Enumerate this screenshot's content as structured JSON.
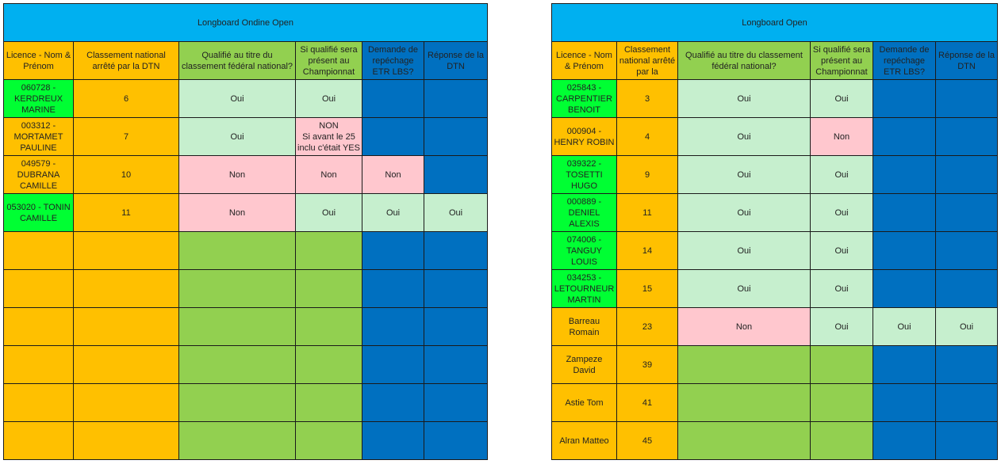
{
  "tables": [
    {
      "title": "Longboard Ondine Open",
      "headers": [
        "Licence - Nom & Prénom",
        "Classement national arrêté par la DTN",
        "Qualifié au titre du classement fédéral national?",
        "Si qualifié sera présent au Championnat",
        "Demande de repéchage ETR LBS?",
        "Réponse de la DTN"
      ],
      "rows": [
        [
          "060728 - KERDREUX MARINE",
          "6",
          "Oui",
          "Oui",
          "",
          ""
        ],
        [
          "003312 - MORTAMET PAULINE",
          "7",
          "Oui",
          "NON\nSi avant le 25 inclu c'était YES",
          "",
          ""
        ],
        [
          "049579 - DUBRANA CAMILLE",
          "10",
          "Non",
          "Non",
          "Non",
          ""
        ],
        [
          "053020 - TONIN CAMILLE",
          "11",
          "Non",
          "Oui",
          "Oui",
          "Oui"
        ],
        [
          "",
          "",
          "",
          "",
          "",
          ""
        ],
        [
          "",
          "",
          "",
          "",
          "",
          ""
        ],
        [
          "",
          "",
          "",
          "",
          "",
          ""
        ],
        [
          "",
          "",
          "",
          "",
          "",
          ""
        ],
        [
          "",
          "",
          "",
          "",
          "",
          ""
        ],
        [
          "",
          "",
          "",
          "",
          "",
          ""
        ]
      ],
      "colors": {
        "green": "#00ff33",
        "orange": "#ffc000",
        "light_green": "#92d050",
        "blue": "#0070c0",
        "pale_green": "#c6efce",
        "pink": "#ffc7ce"
      }
    },
    {
      "title": "Longboard Open",
      "headers": [
        "Licence - Nom & Prénom",
        "Classement national arrêté par la",
        "Qualifié au titre du classement fédéral national?",
        "Si qualifié sera présent au Championnat",
        "Demande de repéchage ETR LBS?",
        "Réponse de la DTN"
      ],
      "rows": [
        [
          "025843 - CARPENTIER BENOIT",
          "3",
          "Oui",
          "Oui",
          "",
          ""
        ],
        [
          "000904 - HENRY ROBIN",
          "4",
          "Oui",
          "Non",
          "",
          ""
        ],
        [
          "039322 - TOSETTI HUGO",
          "9",
          "Oui",
          "Oui",
          "",
          ""
        ],
        [
          "000889 - DENIEL ALEXIS",
          "11",
          "Oui",
          "Oui",
          "",
          ""
        ],
        [
          "074006 - TANGUY LOUIS",
          "14",
          "Oui",
          "Oui",
          "",
          ""
        ],
        [
          "034253 - LETOURNEUR MARTIN",
          "15",
          "Oui",
          "Oui",
          "",
          ""
        ],
        [
          "Barreau Romain",
          "23",
          "Non",
          "Oui",
          "Oui",
          "Oui"
        ],
        [
          "Zampeze David",
          "39",
          "",
          "",
          "",
          ""
        ],
        [
          "Astie Tom",
          "41",
          "",
          "",
          "",
          ""
        ],
        [
          "Alran Matteo",
          "45",
          "",
          "",
          "",
          ""
        ]
      ]
    }
  ]
}
